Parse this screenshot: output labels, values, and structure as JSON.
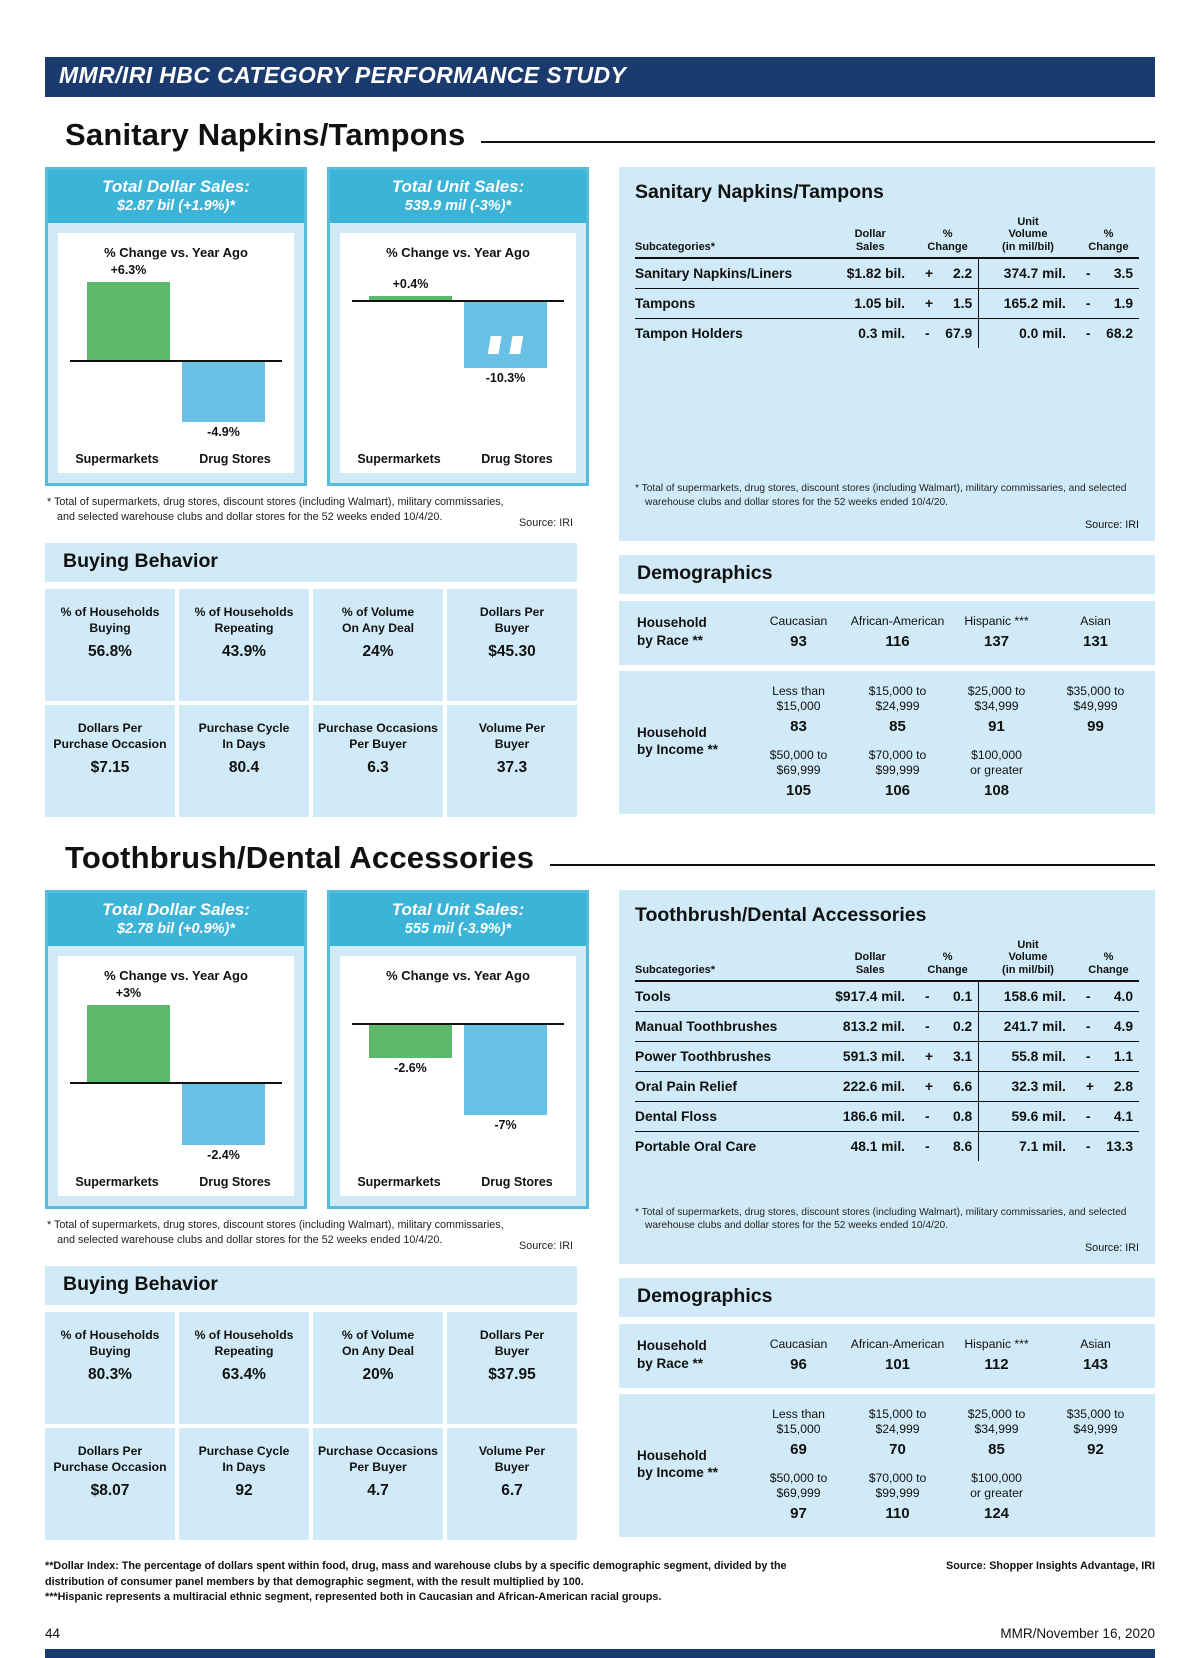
{
  "banner": {
    "title": "MMR/IRI HBC CATEGORY PERFORMANCE STUDY"
  },
  "footer": {
    "page_number": "44",
    "issue": "MMR/November 16, 2020"
  },
  "footnotes": {
    "dollar_index": "**Dollar Index: The percentage of dollars spent within food, drug, mass and warehouse clubs by a specific demographic segment, divided by the distribution of consumer panel members by that demographic segment, with the result multiplied by 100.",
    "hispanic": "***Hispanic represents a multiracial ethnic segment, represented both in Caucasian and African-American racial groups.",
    "source": "Source: Shopper Insights Advantage, IRI"
  },
  "colors": {
    "navy": "#1b3a6d",
    "header_blue": "#3cb4d8",
    "card_border_blue": "#55bcdb",
    "panel_blue": "#d0ebf7",
    "bar_green": "#5db96b",
    "bar_blue": "#68c0e4"
  },
  "store_footnote": "* Total of supermarkets, drug stores, discount stores (including Walmart), military commissaries, and selected warehouse clubs and dollar stores for the 52 weeks ended 10/4/20.",
  "source_iri": "Source: IRI",
  "table_headers": {
    "subcategories": "Subcategories*",
    "dollar_sales": "Dollar\nSales",
    "pct_change": "%\nChange",
    "unit_volume": "Unit\nVolume\n(in mil/bil)"
  },
  "chart_data": [
    {
      "id": "sanitary-dollar-sales",
      "type": "bar",
      "title": "Total Dollar Sales:",
      "subtitle": "$2.87 bil (+1.9%)*",
      "axis_note": "% Change vs. Year Ago",
      "categories": [
        "Supermarkets",
        "Drug Stores"
      ],
      "values": [
        6.3,
        -4.9
      ],
      "value_labels": [
        "+6.3%",
        "-4.9%"
      ],
      "bar_colors": [
        "green",
        "blue"
      ],
      "scale_break_index": null
    },
    {
      "id": "sanitary-unit-sales",
      "type": "bar",
      "title": "Total Unit Sales:",
      "subtitle": "539.9 mil (-3%)*",
      "axis_note": "% Change vs. Year Ago",
      "categories": [
        "Supermarkets",
        "Drug Stores"
      ],
      "values": [
        0.4,
        -10.3
      ],
      "value_labels": [
        "+0.4%",
        "-10.3%"
      ],
      "bar_colors": [
        "green",
        "blue"
      ],
      "scale_break_index": 1
    },
    {
      "id": "toothbrush-dollar-sales",
      "type": "bar",
      "title": "Total Dollar Sales:",
      "subtitle": "$2.78 bil (+0.9%)*",
      "axis_note": "% Change vs. Year Ago",
      "categories": [
        "Supermarkets",
        "Drug Stores"
      ],
      "values": [
        3,
        -2.4
      ],
      "value_labels": [
        "+3%",
        "-2.4%"
      ],
      "bar_colors": [
        "green",
        "blue"
      ],
      "scale_break_index": null
    },
    {
      "id": "toothbrush-unit-sales",
      "type": "bar",
      "title": "Total Unit Sales:",
      "subtitle": "555 mil (-3.9%)*",
      "axis_note": "% Change vs. Year Ago",
      "categories": [
        "Supermarkets",
        "Drug Stores"
      ],
      "values": [
        -2.6,
        -7
      ],
      "value_labels": [
        "-2.6%",
        "-7%"
      ],
      "bar_colors": [
        "green",
        "blue"
      ],
      "scale_break_index": null
    },
    {
      "id": "sanitary-subcategories",
      "type": "table",
      "title": "Sanitary Napkins/Tampons",
      "columns": [
        "Subcategories*",
        "Dollar Sales",
        "% Change",
        "Unit Volume (in mil/bil)",
        "% Change"
      ],
      "rows": [
        [
          "Sanitary Napkins/Liners",
          "$1.82 bil.",
          "+",
          "2.2",
          "374.7 mil.",
          "-",
          "3.5"
        ],
        [
          "Tampons",
          "1.05 bil.",
          "+",
          "1.5",
          "165.2 mil.",
          "-",
          "1.9"
        ],
        [
          "Tampon Holders",
          "0.3 mil.",
          "-",
          "67.9",
          "0.0 mil.",
          "-",
          "68.2"
        ]
      ]
    },
    {
      "id": "toothbrush-subcategories",
      "type": "table",
      "title": "Toothbrush/Dental Accessories",
      "columns": [
        "Subcategories*",
        "Dollar Sales",
        "% Change",
        "Unit Volume (in mil/bil)",
        "% Change"
      ],
      "rows": [
        [
          "Tools",
          "$917.4 mil.",
          "-",
          "0.1",
          "158.6 mil.",
          "-",
          "4.0"
        ],
        [
          "Manual Toothbrushes",
          "813.2 mil.",
          "-",
          "0.2",
          "241.7 mil.",
          "-",
          "4.9"
        ],
        [
          "Power Toothbrushes",
          "591.3 mil.",
          "+",
          "3.1",
          "55.8 mil.",
          "-",
          "1.1"
        ],
        [
          "Oral Pain Relief",
          "222.6 mil.",
          "+",
          "6.6",
          "32.3 mil.",
          "+",
          "2.8"
        ],
        [
          "Dental Floss",
          "186.6 mil.",
          "-",
          "0.8",
          "59.6 mil.",
          "-",
          "4.1"
        ],
        [
          "Portable Oral Care",
          "48.1 mil.",
          "-",
          "8.6",
          "7.1 mil.",
          "-",
          "13.3"
        ]
      ]
    }
  ],
  "sections": [
    {
      "title": "Sanitary Napkins/Tampons",
      "charts": [
        0,
        1
      ],
      "table": 4,
      "buying": {
        "title": "Buying Behavior",
        "cells": [
          {
            "label": "% of Households\nBuying",
            "value": "56.8%"
          },
          {
            "label": "% of Households\nRepeating",
            "value": "43.9%"
          },
          {
            "label": "% of Volume\nOn Any Deal",
            "value": "24%"
          },
          {
            "label": "Dollars Per\nBuyer",
            "value": "$45.30"
          },
          {
            "label": "Dollars Per\nPurchase Occasion",
            "value": "$7.15"
          },
          {
            "label": "Purchase Cycle\nIn Days",
            "value": "80.4"
          },
          {
            "label": "Purchase Occasions\nPer Buyer",
            "value": "6.3"
          },
          {
            "label": "Volume Per\nBuyer",
            "value": "37.3"
          }
        ]
      },
      "demographics": {
        "title": "Demographics",
        "race_label": "Household\nby Race **",
        "race": [
          {
            "label": "Caucasian",
            "value": "93"
          },
          {
            "label": "African-American",
            "value": "116"
          },
          {
            "label": "Hispanic ***",
            "value": "137"
          },
          {
            "label": "Asian",
            "value": "131"
          }
        ],
        "income_label": "Household\nby Income **",
        "income": [
          {
            "label": "Less than\n$15,000",
            "value": "83"
          },
          {
            "label": "$15,000 to\n$24,999",
            "value": "85"
          },
          {
            "label": "$25,000 to\n$34,999",
            "value": "91"
          },
          {
            "label": "$35,000 to\n$49,999",
            "value": "99"
          },
          {
            "label": "$50,000 to\n$69,999",
            "value": "105"
          },
          {
            "label": "$70,000 to\n$99,999",
            "value": "106"
          },
          {
            "label": "$100,000\nor greater",
            "value": "108"
          }
        ]
      }
    },
    {
      "title": "Toothbrush/Dental Accessories",
      "charts": [
        2,
        3
      ],
      "table": 5,
      "buying": {
        "title": "Buying Behavior",
        "cells": [
          {
            "label": "% of Households\nBuying",
            "value": "80.3%"
          },
          {
            "label": "% of Households\nRepeating",
            "value": "63.4%"
          },
          {
            "label": "% of Volume\nOn Any Deal",
            "value": "20%"
          },
          {
            "label": "Dollars Per\nBuyer",
            "value": "$37.95"
          },
          {
            "label": "Dollars Per\nPurchase Occasion",
            "value": "$8.07"
          },
          {
            "label": "Purchase Cycle\nIn Days",
            "value": "92"
          },
          {
            "label": "Purchase Occasions\nPer Buyer",
            "value": "4.7"
          },
          {
            "label": "Volume Per\nBuyer",
            "value": "6.7"
          }
        ]
      },
      "demographics": {
        "title": "Demographics",
        "race_label": "Household\nby Race **",
        "race": [
          {
            "label": "Caucasian",
            "value": "96"
          },
          {
            "label": "African-American",
            "value": "101"
          },
          {
            "label": "Hispanic ***",
            "value": "112"
          },
          {
            "label": "Asian",
            "value": "143"
          }
        ],
        "income_label": "Household\nby Income **",
        "income": [
          {
            "label": "Less than\n$15,000",
            "value": "69"
          },
          {
            "label": "$15,000 to\n$24,999",
            "value": "70"
          },
          {
            "label": "$25,000 to\n$34,999",
            "value": "85"
          },
          {
            "label": "$35,000 to\n$49,999",
            "value": "92"
          },
          {
            "label": "$50,000 to\n$69,999",
            "value": "97"
          },
          {
            "label": "$70,000 to\n$99,999",
            "value": "110"
          },
          {
            "label": "$100,000\nor greater",
            "value": "124"
          }
        ]
      }
    }
  ]
}
